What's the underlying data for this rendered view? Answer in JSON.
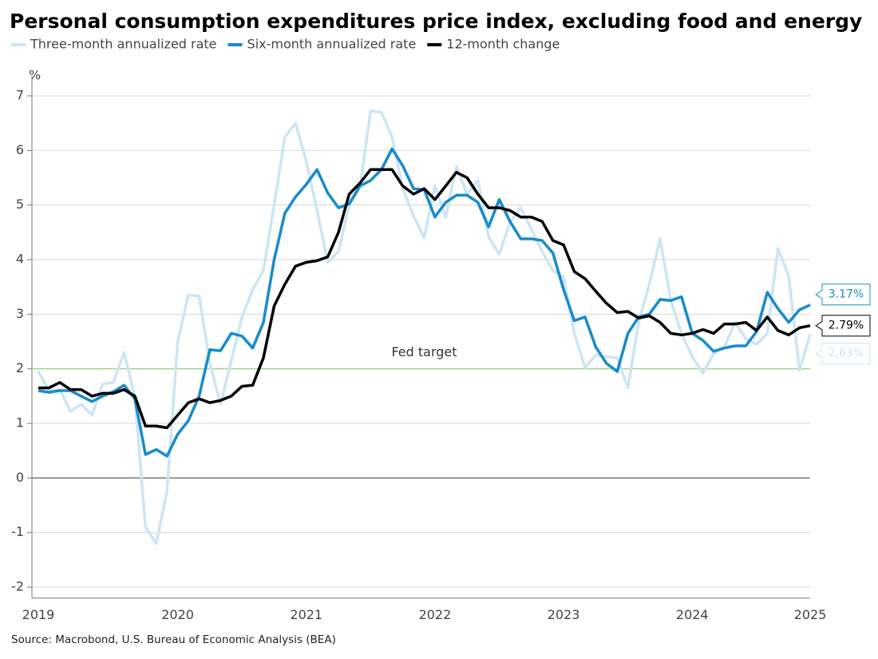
{
  "chart_data": {
    "type": "line",
    "title": "Personal consumption expenditures price index, excluding food and energy",
    "y_label": "%",
    "source": "Source: Macrobond, U.S. Bureau of Economic Analysis (BEA)",
    "categories": [
      "2019",
      null,
      null,
      null,
      null,
      null,
      null,
      null,
      null,
      null,
      null,
      null,
      null,
      "2020",
      null,
      null,
      null,
      null,
      null,
      null,
      null,
      null,
      null,
      null,
      null,
      "2021",
      null,
      null,
      null,
      null,
      null,
      null,
      null,
      null,
      null,
      null,
      null,
      "2022",
      null,
      null,
      null,
      null,
      null,
      null,
      null,
      null,
      null,
      null,
      null,
      "2023",
      null,
      null,
      null,
      null,
      null,
      null,
      null,
      null,
      null,
      null,
      null,
      "2024",
      null,
      null,
      null,
      null,
      null,
      null,
      null,
      null,
      null,
      null,
      "2025"
    ],
    "ylim": [
      -2.2,
      7.3
    ],
    "yticks": [
      -2,
      -1,
      0,
      1,
      2,
      3,
      4,
      5,
      6,
      7
    ],
    "grid": true,
    "annotation": {
      "text": "Fed target",
      "value": 2,
      "color": "#9fd58f"
    },
    "series": [
      {
        "name": "Three-month annualized rate",
        "color": "#cce5f4",
        "end_label": "2.63%",
        "values": [
          1.95,
          1.6,
          1.62,
          1.22,
          1.35,
          1.15,
          1.72,
          1.75,
          2.3,
          1.5,
          -0.9,
          -1.2,
          -0.25,
          2.5,
          3.35,
          3.33,
          2.1,
          1.35,
          2.15,
          2.95,
          3.45,
          3.8,
          5.0,
          6.25,
          6.5,
          5.8,
          4.9,
          3.95,
          4.15,
          5.0,
          5.32,
          6.72,
          6.7,
          6.25,
          5.3,
          4.8,
          4.4,
          5.35,
          4.78,
          5.7,
          5.2,
          5.45,
          4.42,
          4.1,
          4.68,
          4.95,
          4.55,
          4.15,
          3.8,
          3.68,
          2.65,
          2.02,
          2.25,
          2.22,
          2.2,
          1.65,
          2.85,
          3.55,
          4.38,
          3.25,
          2.65,
          2.22,
          1.92,
          2.28,
          2.4,
          2.85,
          2.55,
          2.45,
          2.65,
          4.2,
          3.7,
          1.97,
          2.63
        ]
      },
      {
        "name": "Six-month annualized rate",
        "color": "#168bcb",
        "end_label": "3.17%",
        "values": [
          1.6,
          1.57,
          1.6,
          1.6,
          1.5,
          1.4,
          1.5,
          1.58,
          1.7,
          1.45,
          0.43,
          0.52,
          0.4,
          0.8,
          1.05,
          1.5,
          2.35,
          2.33,
          2.65,
          2.6,
          2.38,
          2.85,
          4.0,
          4.85,
          5.15,
          5.38,
          5.65,
          5.22,
          4.95,
          5.02,
          5.35,
          5.45,
          5.65,
          6.03,
          5.72,
          5.3,
          5.28,
          4.78,
          5.05,
          5.18,
          5.18,
          5.05,
          4.6,
          5.1,
          4.7,
          4.38,
          4.38,
          4.35,
          4.12,
          3.45,
          2.88,
          2.95,
          2.4,
          2.1,
          1.95,
          2.65,
          2.95,
          3.0,
          3.27,
          3.25,
          3.32,
          2.65,
          2.52,
          2.32,
          2.38,
          2.42,
          2.42,
          2.68,
          3.4,
          3.1,
          2.85,
          3.08,
          3.17
        ]
      },
      {
        "name": "12-month change",
        "color": "#000000",
        "end_label": "2.79%",
        "values": [
          1.65,
          1.65,
          1.75,
          1.62,
          1.62,
          1.5,
          1.55,
          1.55,
          1.62,
          1.5,
          0.95,
          0.95,
          0.92,
          1.15,
          1.38,
          1.45,
          1.38,
          1.42,
          1.5,
          1.68,
          1.7,
          2.2,
          3.15,
          3.55,
          3.88,
          3.95,
          3.98,
          4.05,
          4.5,
          5.2,
          5.4,
          5.65,
          5.65,
          5.65,
          5.35,
          5.2,
          5.3,
          5.1,
          5.35,
          5.6,
          5.5,
          5.2,
          4.95,
          4.95,
          4.9,
          4.78,
          4.78,
          4.7,
          4.35,
          4.27,
          3.78,
          3.65,
          3.42,
          3.2,
          3.03,
          3.05,
          2.93,
          2.97,
          2.85,
          2.65,
          2.62,
          2.65,
          2.72,
          2.65,
          2.82,
          2.82,
          2.85,
          2.7,
          2.95,
          2.7,
          2.62,
          2.75,
          2.79
        ]
      }
    ]
  }
}
